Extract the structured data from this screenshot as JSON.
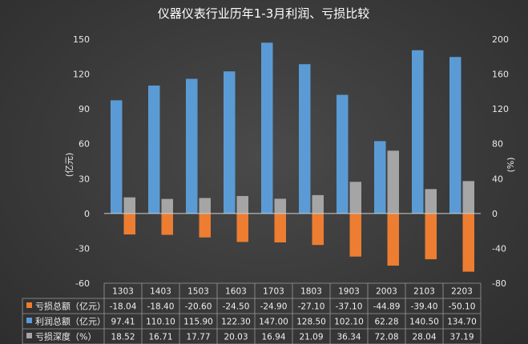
{
  "chart_data": {
    "type": "bar",
    "title": "仪器仪表行业历年1-3月利润、亏损比较",
    "categories": [
      "1303",
      "1403",
      "1503",
      "1603",
      "1703",
      "1803",
      "1903",
      "2003",
      "2103",
      "2203"
    ],
    "series": [
      {
        "name": "亏损总额（亿元）",
        "axis": "left",
        "color": "#ed7d31",
        "values": [
          -18.04,
          -18.4,
          -20.6,
          -24.5,
          -24.9,
          -27.1,
          -37.1,
          -44.89,
          -39.4,
          -50.1
        ],
        "labels": [
          "-18.04",
          "-18.40",
          "-20.60",
          "-24.50",
          "-24.90",
          "-27.10",
          "-37.10",
          "-44.89",
          "-39.40",
          "-50.10"
        ]
      },
      {
        "name": "利润总额（亿元）",
        "axis": "left",
        "color": "#5b9bd5",
        "values": [
          97.41,
          110.1,
          115.9,
          122.3,
          147.0,
          128.5,
          102.1,
          62.28,
          140.5,
          134.7
        ],
        "labels": [
          "97.41",
          "110.10",
          "115.90",
          "122.30",
          "147.00",
          "128.50",
          "102.10",
          "62.28",
          "140.50",
          "134.70"
        ]
      },
      {
        "name": "亏损深度（%）",
        "axis": "right",
        "color": "#a5a5a5",
        "values": [
          18.52,
          16.71,
          17.77,
          20.03,
          16.94,
          21.09,
          36.34,
          72.08,
          28.04,
          37.19
        ],
        "labels": [
          "18.52",
          "16.71",
          "17.77",
          "20.03",
          "16.94",
          "21.09",
          "36.34",
          "72.08",
          "28.04",
          "37.19"
        ]
      }
    ],
    "y_left": {
      "label": "(亿元)",
      "ylim": [
        -60,
        150
      ],
      "ticks": [
        -60,
        -30,
        0,
        30,
        60,
        90,
        120,
        150
      ],
      "tick_labels": [
        "-60",
        "-30",
        "0",
        "30",
        "60",
        "90",
        "120",
        "150"
      ]
    },
    "y_right": {
      "label": "(%)",
      "ylim": [
        -80,
        200
      ],
      "ticks": [
        -80,
        -40,
        0,
        40,
        80,
        120,
        160,
        200
      ],
      "tick_labels": [
        "-80",
        "-40",
        "0",
        "40",
        "80",
        "120",
        "160",
        "200"
      ]
    },
    "grid": false,
    "data_table": true
  }
}
